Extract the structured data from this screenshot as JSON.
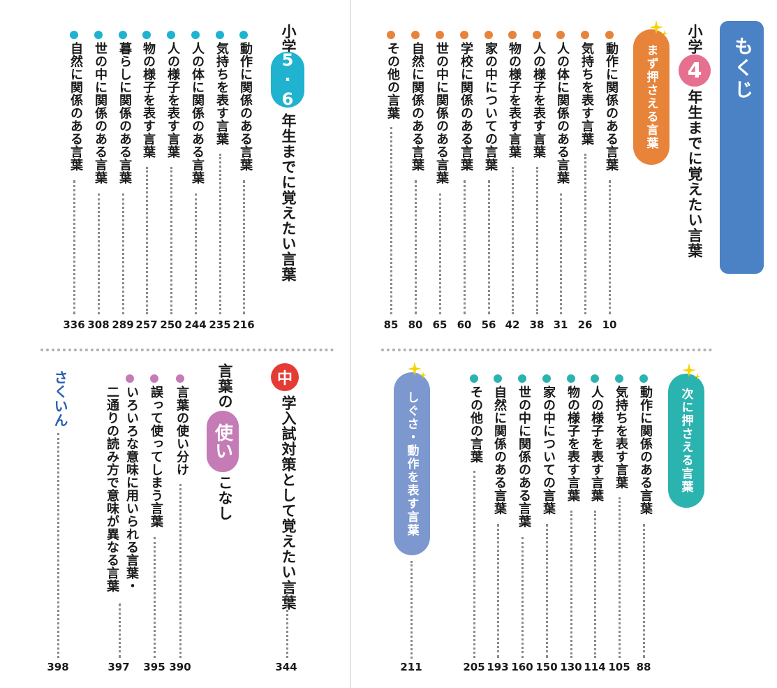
{
  "index_tab": "もくじ",
  "colors": {
    "orange": "#e8833a",
    "teal": "#2bb3b0",
    "pink": "#e6708f",
    "cyan": "#1fb3cf",
    "blue": "#4b82c6",
    "purple": "#c47bb6",
    "periwinkle": "#7d98cf",
    "red": "#e53b34"
  },
  "grade4": {
    "heading_pre": "小学",
    "badge": "4",
    "heading_post": "年生までに覚えたい言葉",
    "first_tag": "まず押さえる言葉",
    "first_items": [
      {
        "label": "動作に関係のある言葉",
        "page": "10"
      },
      {
        "label": "気持ちを表す言葉",
        "page": "26"
      },
      {
        "label": "人の体に関係のある言葉",
        "page": "31"
      },
      {
        "label": "人の様子を表す言葉",
        "page": "38"
      },
      {
        "label": "物の様子を表す言葉",
        "page": "42"
      },
      {
        "label": "家の中についての言葉",
        "page": "56"
      },
      {
        "label": "学校に関係のある言葉",
        "page": "60"
      },
      {
        "label": "世の中に関係のある言葉",
        "page": "65"
      },
      {
        "label": "自然に関係のある言葉",
        "page": "80"
      },
      {
        "label": "その他の言葉",
        "page": "85"
      }
    ],
    "second_tag": "次に押さえる言葉",
    "second_items": [
      {
        "label": "動作に関係のある言葉",
        "page": "88"
      },
      {
        "label": "気持ちを表す言葉",
        "page": "105"
      },
      {
        "label": "人の様子を表す言葉",
        "page": "114"
      },
      {
        "label": "物の様子を表す言葉",
        "page": "130"
      },
      {
        "label": "家の中についての言葉",
        "page": "150"
      },
      {
        "label": "世の中に関係のある言葉",
        "page": "160"
      },
      {
        "label": "自然に関係のある言葉",
        "page": "193"
      },
      {
        "label": "その他の言葉",
        "page": "205"
      }
    ],
    "gesture_tag": "しぐさ・動作を表す言葉",
    "gesture_page": "211"
  },
  "grade56": {
    "heading_pre": "小学",
    "badge": "5·6",
    "heading_post": "年生までに覚えたい言葉",
    "items": [
      {
        "label": "動作に関係のある言葉",
        "page": "216"
      },
      {
        "label": "気持ちを表す言葉",
        "page": "235"
      },
      {
        "label": "人の体に関係のある言葉",
        "page": "244"
      },
      {
        "label": "人の様子を表す言葉",
        "page": "250"
      },
      {
        "label": "物の様子を表す言葉",
        "page": "257"
      },
      {
        "label": "暮らしに関係のある言葉",
        "page": "289"
      },
      {
        "label": "世の中に関係のある言葉",
        "page": "308"
      },
      {
        "label": "自然に関係のある言葉",
        "page": "336"
      }
    ]
  },
  "middle": {
    "badge": "中",
    "heading": "学入試対策として覚えたい言葉",
    "page": "344"
  },
  "usage": {
    "heading_pre": "言葉の",
    "badge": "使い",
    "heading_post": "こなし",
    "items": [
      {
        "label": "言葉の使い分け",
        "page": "390"
      },
      {
        "label": "誤って使ってしまう言葉",
        "page": "395"
      },
      {
        "label": "いろいろな意味に用いられる言葉・",
        "label2": "二通りの読み方で意味が異なる言葉",
        "page": "397"
      }
    ]
  },
  "index": {
    "label": "さくいん",
    "page": "398"
  }
}
